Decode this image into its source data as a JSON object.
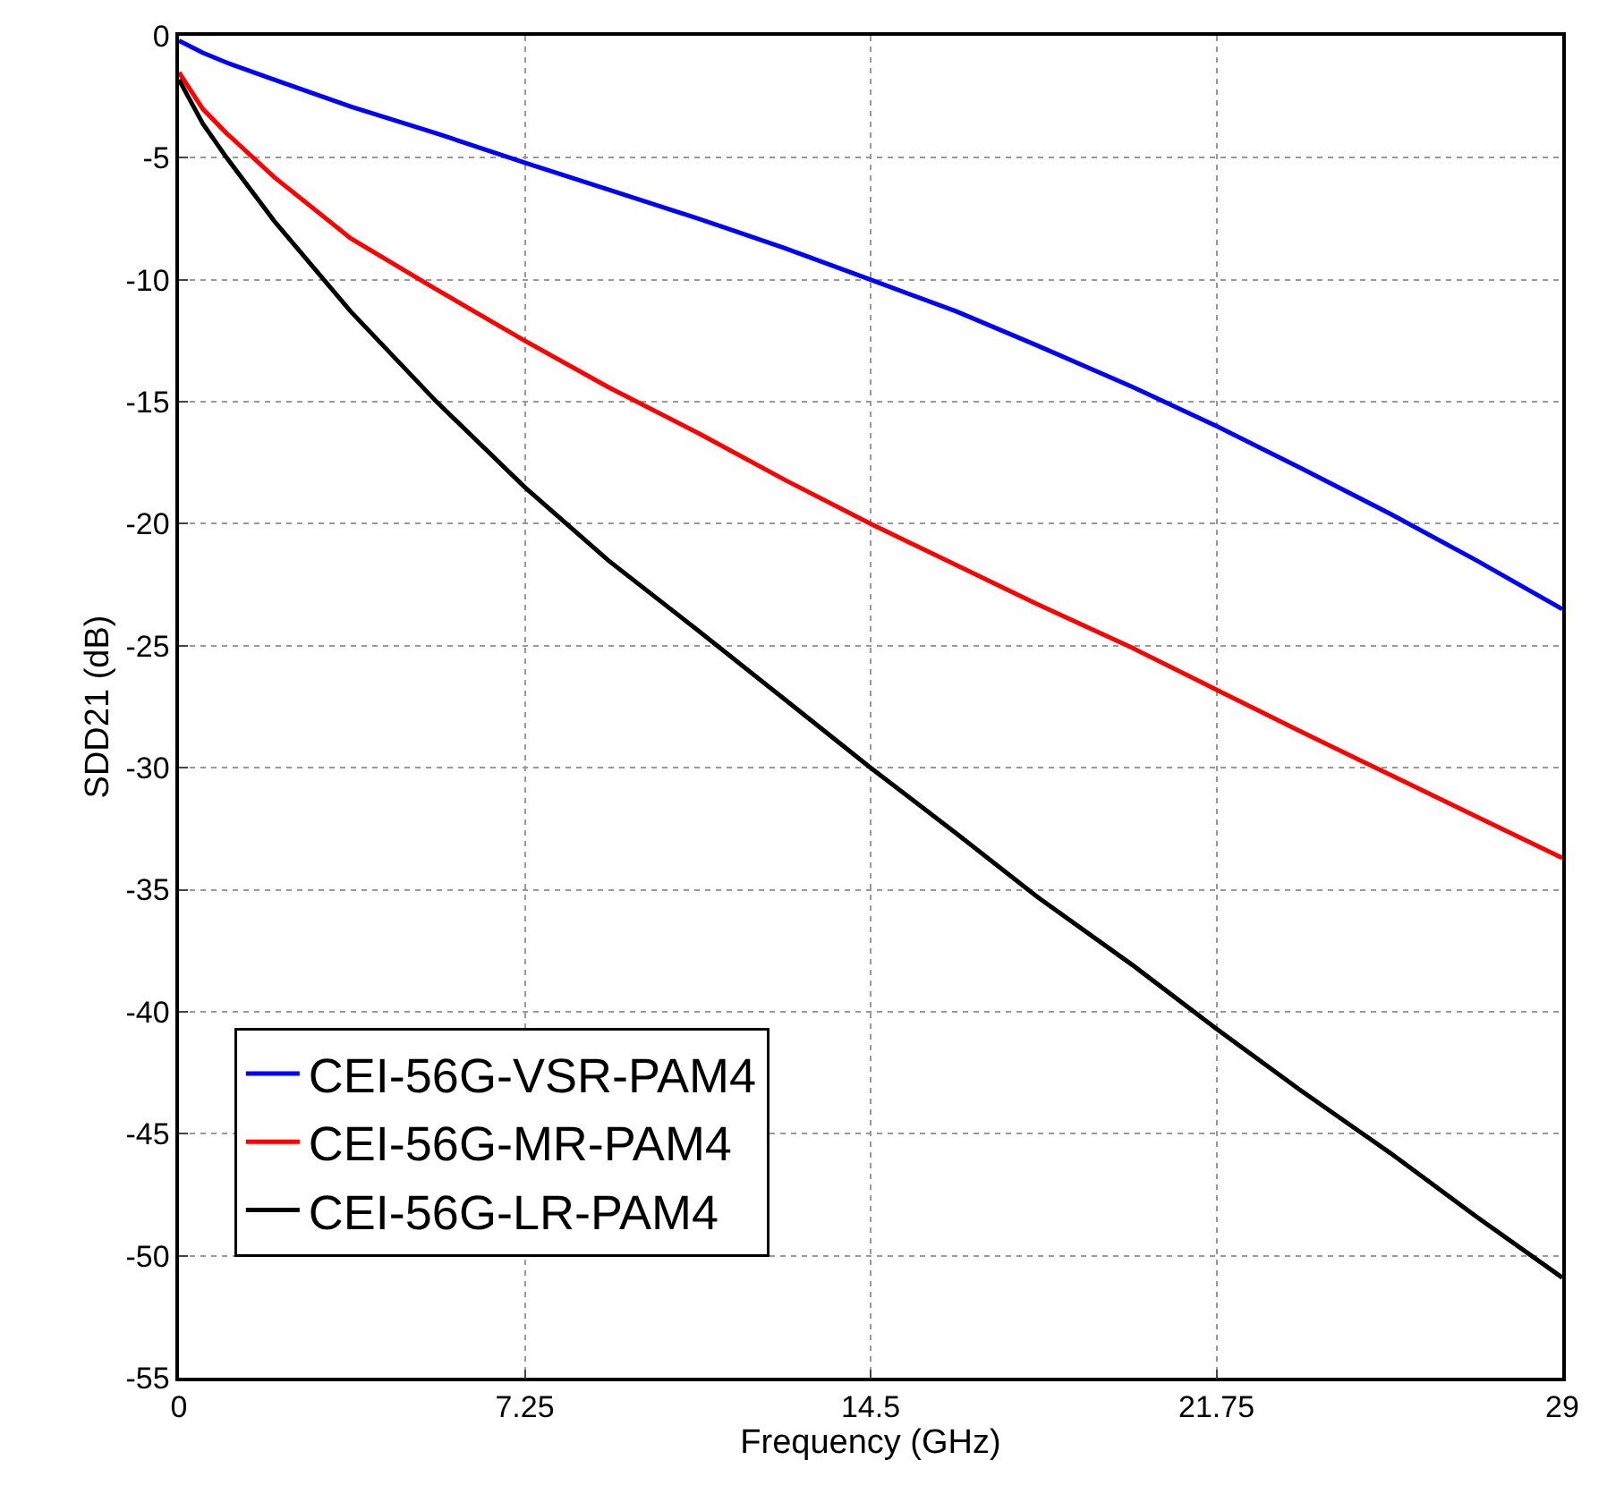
{
  "chart_data": {
    "type": "line",
    "xlabel": "Frequency (GHz)",
    "ylabel": "SDD21 (dB)",
    "xlim": [
      0,
      29
    ],
    "xticks": [
      0,
      7.25,
      14.5,
      21.75,
      29
    ],
    "ylim": [
      -55,
      0
    ],
    "yticks": [
      -55,
      -50,
      -45,
      -40,
      -35,
      -30,
      -25,
      -20,
      -15,
      -10,
      -5,
      0
    ],
    "grid": true,
    "legend": "bottom left",
    "marker": "none",
    "line_style": "solid",
    "x": [
      0,
      0.5,
      1,
      2,
      3.6,
      5.4,
      7.25,
      9,
      10.9,
      12.7,
      14.5,
      16.3,
      18,
      20,
      21.75,
      23.5,
      25.4,
      27.2,
      29
    ],
    "series": [
      {
        "name": "CEI-56G-VSR-PAM4",
        "color": "#0000ff",
        "values": [
          -0.2,
          -0.7,
          -1.1,
          -1.8,
          -2.9,
          -4.0,
          -5.2,
          -6.3,
          -7.5,
          -8.7,
          -10.0,
          -11.3,
          -12.7,
          -14.4,
          -16.0,
          -17.7,
          -19.6,
          -21.5,
          -23.5
        ]
      },
      {
        "name": "CEI-56G-MR-PAM4",
        "color": "#ff0000",
        "values": [
          -1.5,
          -3.0,
          -4.0,
          -5.8,
          -8.3,
          -10.4,
          -12.5,
          -14.4,
          -16.3,
          -18.2,
          -20.0,
          -21.7,
          -23.3,
          -25.1,
          -26.8,
          -28.5,
          -30.3,
          -32.0,
          -33.7
        ]
      },
      {
        "name": "CEI-56G-LR-PAM4",
        "color": "#000000",
        "values": [
          -1.8,
          -3.6,
          -5.0,
          -7.6,
          -11.3,
          -15.0,
          -18.5,
          -21.5,
          -24.4,
          -27.2,
          -30.0,
          -32.7,
          -35.3,
          -38.1,
          -40.7,
          -43.2,
          -45.8,
          -48.4,
          -50.9
        ]
      }
    ]
  }
}
